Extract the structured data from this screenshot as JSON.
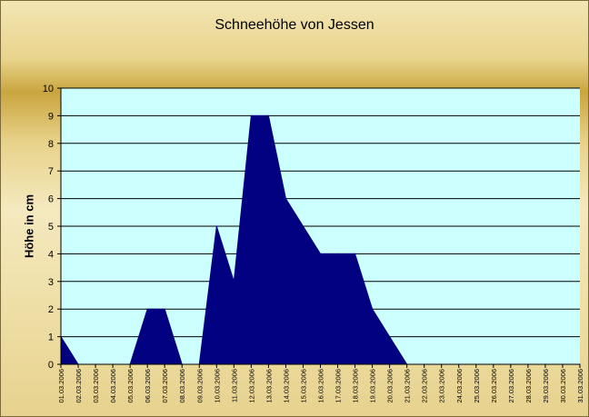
{
  "chart_data": {
    "type": "area",
    "title": "Schneehöhe von Jessen",
    "xlabel": "",
    "ylabel": "Höhe in cm",
    "ylim": [
      0,
      10
    ],
    "yticks": [
      0,
      1,
      2,
      3,
      4,
      5,
      6,
      7,
      8,
      9,
      10
    ],
    "grid": true,
    "legend": "none",
    "categories": [
      "01.03.2006",
      "02.03.2006",
      "03.03.2006",
      "04.03.2006",
      "05.03.2006",
      "06.03.2006",
      "07.03.2006",
      "08.03.2006",
      "09.03.2006",
      "10.03.2006",
      "11.03.2006",
      "12.03.2006",
      "13.03.2006",
      "14.03.2006",
      "15.03.2006",
      "16.03.2006",
      "17.03.2006",
      "18.03.2006",
      "19.03.2006",
      "20.03.2006",
      "21.03.2006",
      "22.03.2006",
      "23.03.2006",
      "24.03.2006",
      "25.03.2006",
      "26.03.2006",
      "27.03.2006",
      "28.03.2006",
      "29.03.2006",
      "30.03.2006",
      "31.03.2006"
    ],
    "values": [
      1,
      0,
      0,
      0,
      0,
      2,
      2,
      0,
      0,
      5,
      3,
      9,
      9,
      6,
      5,
      4,
      4,
      4,
      2,
      1,
      0,
      0,
      0,
      0,
      0,
      0,
      0,
      0,
      0,
      0,
      0
    ],
    "colors": {
      "area": "#000080",
      "plot_background": "#ccffff",
      "gridline": "#000000"
    }
  }
}
